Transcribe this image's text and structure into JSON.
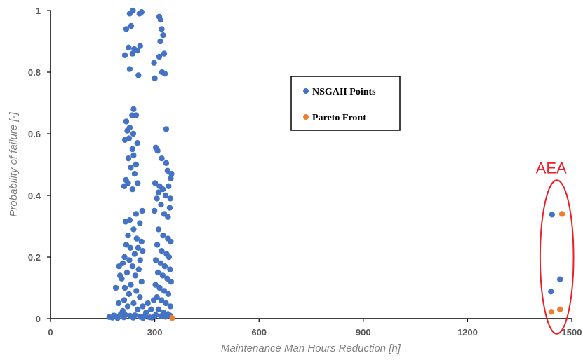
{
  "chart_data": {
    "type": "scatter",
    "title": "",
    "xlabel": "Maintenance Man Hours Reduction [h]",
    "ylabel": "Probability of failure [-]",
    "xlim": [
      0,
      1500
    ],
    "ylim": [
      0,
      1
    ],
    "xticks": [
      "0",
      "300",
      "600",
      "900",
      "1200",
      "1500"
    ],
    "yticks": [
      "0",
      "0.2",
      "0.4",
      "0.6",
      "0.8",
      "1"
    ],
    "grid": false,
    "legend_position": "center",
    "series": [
      {
        "name": "NSGAII Points",
        "color": "#4472c4",
        "points": [
          [
            218,
            0.94
          ],
          [
            228,
            0.99
          ],
          [
            237,
            1.0
          ],
          [
            256,
            0.99
          ],
          [
            262,
            0.995
          ],
          [
            232,
            0.95
          ],
          [
            225,
            0.88
          ],
          [
            241,
            0.875
          ],
          [
            250,
            0.87
          ],
          [
            258,
            0.885
          ],
          [
            214,
            0.855
          ],
          [
            236,
            0.86
          ],
          [
            228,
            0.81
          ],
          [
            253,
            0.79
          ],
          [
            298,
            0.83
          ],
          [
            300,
            0.78
          ],
          [
            313,
            0.98
          ],
          [
            317,
            0.97
          ],
          [
            320,
            0.94
          ],
          [
            324,
            0.92
          ],
          [
            316,
            0.9
          ],
          [
            327,
            0.86
          ],
          [
            313,
            0.85
          ],
          [
            321,
            0.8
          ],
          [
            329,
            0.795
          ],
          [
            239,
            0.68
          ],
          [
            235,
            0.66
          ],
          [
            218,
            0.64
          ],
          [
            246,
            0.66
          ],
          [
            228,
            0.62
          ],
          [
            221,
            0.61
          ],
          [
            238,
            0.6
          ],
          [
            226,
            0.585
          ],
          [
            214,
            0.58
          ],
          [
            250,
            0.57
          ],
          [
            333,
            0.615
          ],
          [
            236,
            0.55
          ],
          [
            239,
            0.53
          ],
          [
            224,
            0.52
          ],
          [
            246,
            0.5
          ],
          [
            231,
            0.49
          ],
          [
            217,
            0.45
          ],
          [
            242,
            0.47
          ],
          [
            251,
            0.44
          ],
          [
            223,
            0.44
          ],
          [
            236,
            0.42
          ],
          [
            212,
            0.43
          ],
          [
            303,
            0.555
          ],
          [
            308,
            0.545
          ],
          [
            320,
            0.52
          ],
          [
            333,
            0.505
          ],
          [
            337,
            0.48
          ],
          [
            348,
            0.47
          ],
          [
            346,
            0.455
          ],
          [
            301,
            0.44
          ],
          [
            314,
            0.43
          ],
          [
            323,
            0.42
          ],
          [
            340,
            0.43
          ],
          [
            311,
            0.41
          ],
          [
            331,
            0.4
          ],
          [
            345,
            0.39
          ],
          [
            306,
            0.39
          ],
          [
            318,
            0.37
          ],
          [
            343,
            0.36
          ],
          [
            299,
            0.35
          ],
          [
            327,
            0.34
          ],
          [
            338,
            0.33
          ],
          [
            264,
            0.35
          ],
          [
            246,
            0.34
          ],
          [
            228,
            0.32
          ],
          [
            216,
            0.315
          ],
          [
            257,
            0.31
          ],
          [
            239,
            0.29
          ],
          [
            223,
            0.27
          ],
          [
            248,
            0.26
          ],
          [
            262,
            0.25
          ],
          [
            218,
            0.24
          ],
          [
            230,
            0.23
          ],
          [
            252,
            0.23
          ],
          [
            265,
            0.22
          ],
          [
            242,
            0.21
          ],
          [
            213,
            0.2
          ],
          [
            227,
            0.19
          ],
          [
            258,
            0.19
          ],
          [
            208,
            0.18
          ],
          [
            236,
            0.17
          ],
          [
            254,
            0.16
          ],
          [
            220,
            0.15
          ],
          [
            244,
            0.14
          ],
          [
            205,
            0.13
          ],
          [
            262,
            0.12
          ],
          [
            231,
            0.11
          ],
          [
            214,
            0.1
          ],
          [
            188,
            0.1
          ],
          [
            200,
            0.14
          ],
          [
            197,
            0.17
          ],
          [
            247,
            0.09
          ],
          [
            226,
            0.08
          ],
          [
            257,
            0.07
          ],
          [
            212,
            0.06
          ],
          [
            239,
            0.05
          ],
          [
            222,
            0.04
          ],
          [
            251,
            0.03
          ],
          [
            208,
            0.025
          ],
          [
            265,
            0.04
          ],
          [
            196,
            0.05
          ],
          [
            182,
            0.01
          ],
          [
            169,
            0.005
          ],
          [
            188,
            0.008
          ],
          [
            202,
            0.015
          ],
          [
            215,
            0.012
          ],
          [
            229,
            0.009
          ],
          [
            243,
            0.011
          ],
          [
            258,
            0.006
          ],
          [
            272,
            0.01
          ],
          [
            285,
            0.004
          ],
          [
            300,
            0.008
          ],
          [
            178,
            0.003
          ],
          [
            193,
            0.002
          ],
          [
            211,
            0.004
          ],
          [
            238,
            0.003
          ],
          [
            266,
            0.002
          ],
          [
            292,
            0.003
          ],
          [
            311,
            0.29
          ],
          [
            324,
            0.27
          ],
          [
            338,
            0.26
          ],
          [
            346,
            0.25
          ],
          [
            307,
            0.24
          ],
          [
            320,
            0.22
          ],
          [
            334,
            0.21
          ],
          [
            341,
            0.2
          ],
          [
            303,
            0.19
          ],
          [
            317,
            0.18
          ],
          [
            329,
            0.17
          ],
          [
            344,
            0.16
          ],
          [
            309,
            0.15
          ],
          [
            323,
            0.14
          ],
          [
            336,
            0.13
          ],
          [
            347,
            0.12
          ],
          [
            302,
            0.11
          ],
          [
            314,
            0.1
          ],
          [
            327,
            0.09
          ],
          [
            339,
            0.08
          ],
          [
            306,
            0.07
          ],
          [
            319,
            0.06
          ],
          [
            332,
            0.05
          ],
          [
            345,
            0.04
          ],
          [
            311,
            0.03
          ],
          [
            325,
            0.02
          ],
          [
            338,
            0.015
          ],
          [
            303,
            0.012
          ],
          [
            318,
            0.008
          ],
          [
            331,
            0.006
          ],
          [
            344,
            0.01
          ],
          [
            297,
            0.06
          ],
          [
            289,
            0.03
          ],
          [
            280,
            0.05
          ],
          [
            275,
            0.02
          ],
          [
            1443,
            0.338
          ],
          [
            1466,
            0.128
          ],
          [
            1440,
            0.088
          ]
        ]
      },
      {
        "name": "Pareto Front",
        "color": "#ed7d31",
        "points": [
          [
            1472,
            0.34
          ],
          [
            1466,
            0.03
          ],
          [
            1441,
            0.022
          ],
          [
            350,
            0.002
          ]
        ]
      }
    ],
    "annotations": [
      {
        "text": "AEA",
        "color": "#e8202a",
        "shape": "ellipse",
        "cx": 1457,
        "cy": 0.2,
        "rx": 48,
        "ry": 0.43
      }
    ]
  }
}
